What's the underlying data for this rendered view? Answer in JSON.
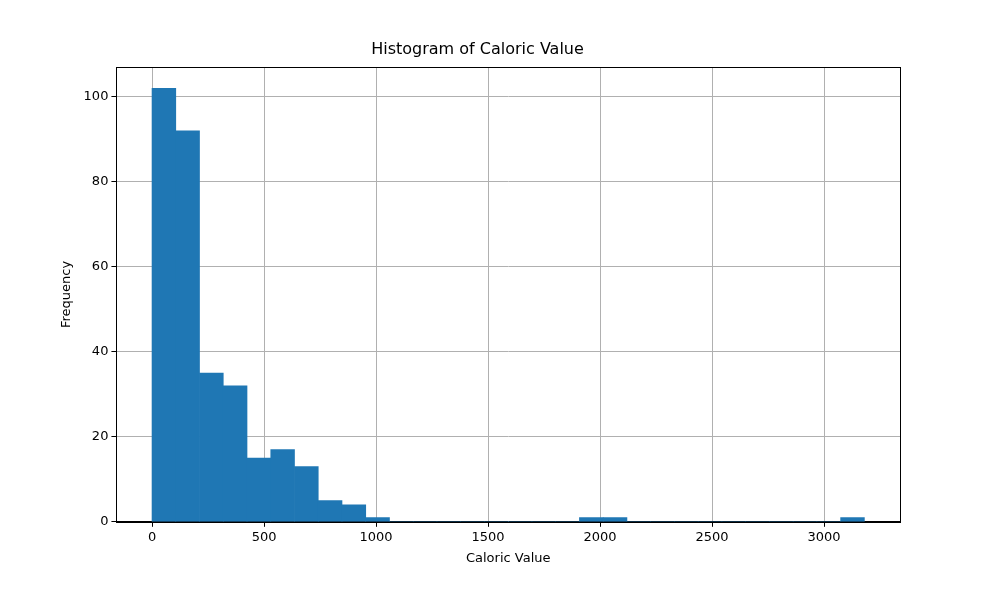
{
  "chart_data": {
    "type": "histogram",
    "title": "Histogram of Caloric Value",
    "x_label": "Caloric Value",
    "y_label": "Frequency",
    "bins": [
      0,
      106,
      212,
      318,
      424,
      530,
      636,
      742,
      848,
      954,
      1060,
      1166,
      1272,
      1378,
      1484,
      1590,
      1696,
      1802,
      1908,
      2014,
      2120,
      2226,
      2332,
      2438,
      2544,
      2650,
      2756,
      2862,
      2968,
      3074,
      3180
    ],
    "values": [
      102,
      92,
      35,
      32,
      15,
      17,
      13,
      5,
      4,
      1,
      0,
      0,
      0,
      0,
      0,
      0,
      0,
      0,
      1,
      1,
      0,
      0,
      0,
      0,
      0,
      0,
      0,
      0,
      0,
      1
    ],
    "color": "#1f77b4",
    "xlim": [
      -159,
      3339
    ],
    "xticks": [
      0,
      500,
      1000,
      1500,
      2000,
      2500,
      3000
    ],
    "ylim": [
      0,
      107
    ],
    "yticks": [
      0,
      20,
      40,
      60,
      80,
      100
    ],
    "grid": true
  }
}
